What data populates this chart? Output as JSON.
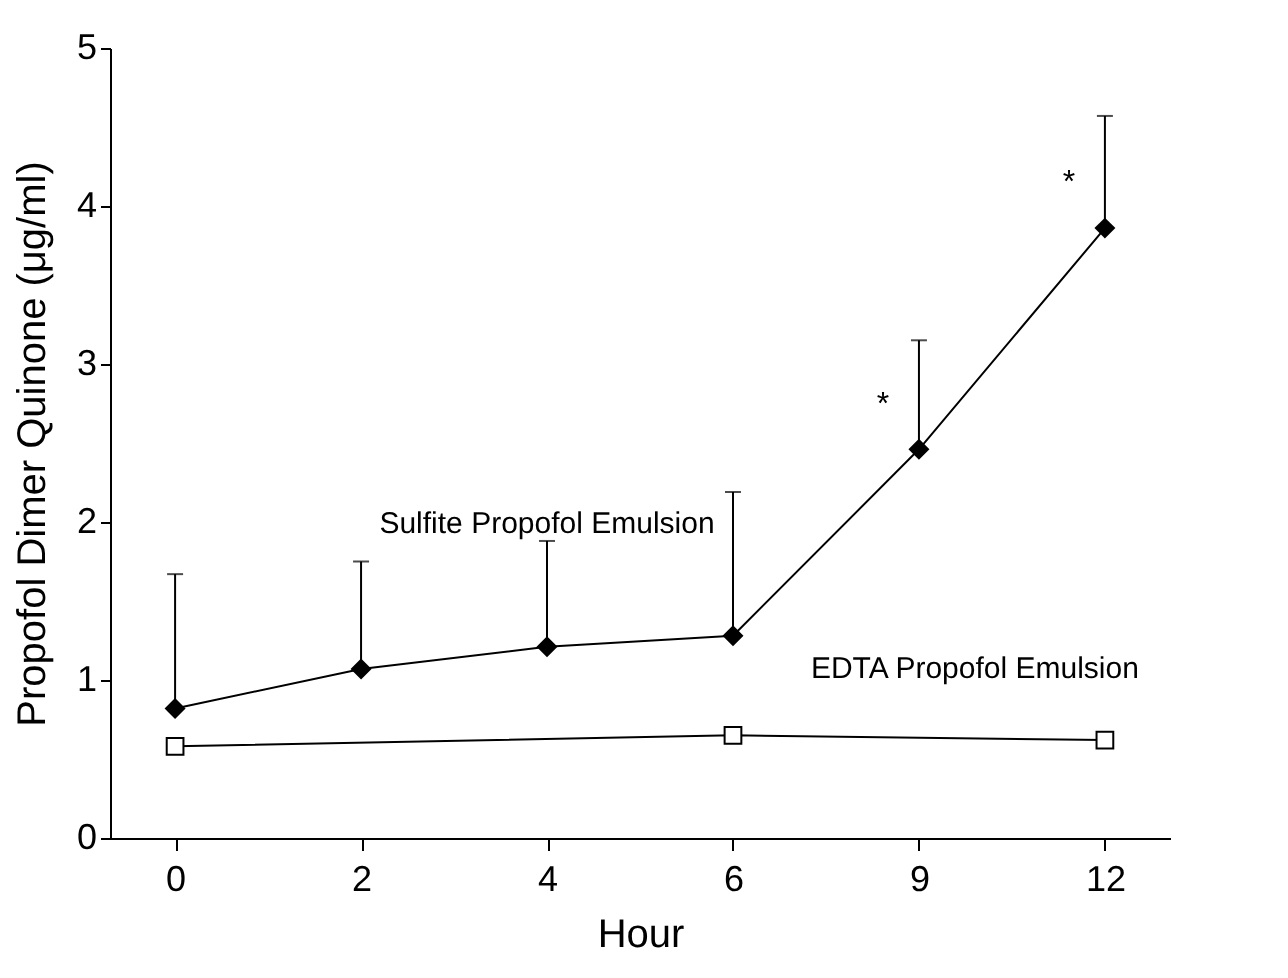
{
  "chart_data": {
    "type": "line",
    "xlabel": "Hour",
    "ylabel": "Propofol Dimer Quinone (μg/ml)",
    "categories": [
      "0",
      "2",
      "4",
      "6",
      "9",
      "12"
    ],
    "series": [
      {
        "name": "Sulfite Propofol Emulsion",
        "color": "#000000",
        "marker": "diamond",
        "values": [
          0.82,
          1.07,
          1.21,
          1.28,
          2.46,
          3.86
        ],
        "errors": [
          [
            0.82,
            1.67
          ],
          [
            1.07,
            1.75
          ],
          [
            1.21,
            1.88
          ],
          [
            1.28,
            2.19
          ],
          [
            2.46,
            3.15
          ],
          [
            3.86,
            4.57
          ]
        ]
      },
      {
        "name": "EDTA Propofol Emulsion",
        "color": "#000000",
        "marker": "square",
        "x": [
          "0",
          "6",
          "12"
        ],
        "values": [
          0.58,
          0.65,
          0.62
        ]
      }
    ],
    "annotations": [
      {
        "text": "*",
        "x": "9",
        "y": 2.75
      },
      {
        "text": "*",
        "x": "12",
        "y": 4.15
      }
    ],
    "ylim": [
      0,
      5
    ],
    "yticks": [
      0,
      1,
      2,
      3,
      4,
      5
    ],
    "grid": false,
    "line_style": "solid"
  }
}
